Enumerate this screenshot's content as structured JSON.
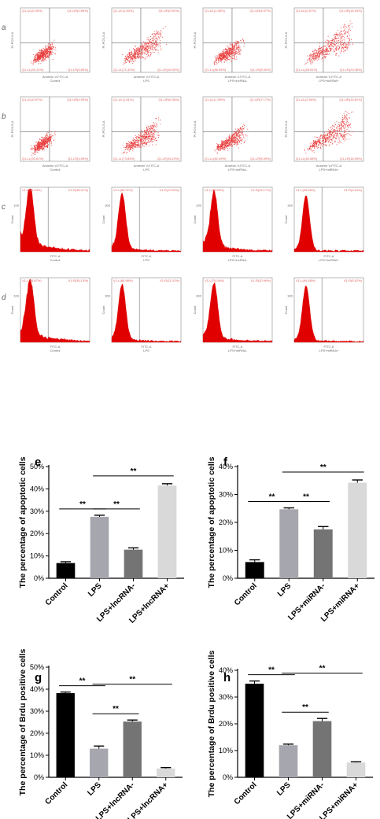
{
  "panel_letters": [
    "a",
    "b",
    "c",
    "d",
    "e",
    "f",
    "g",
    "h"
  ],
  "flow_rows": [
    {
      "letter": "a",
      "kind": "scatter",
      "xlabel": "Annexin V-FITC-A",
      "ylabel": "PI-PCS-5-A",
      "plots": [
        {
          "condition": "Control",
          "quadrants": [
            "Q1-UL(0.39%)",
            "Q1-UR(0.69%)",
            "Q1-LL(93.12%)",
            "Q1-LR(5.80%)"
          ]
        },
        {
          "condition": "LPS",
          "quadrants": [
            "Q1-UL(1.83%)",
            "Q1-UR(9.92%)",
            "Q1-LL(71.32%)",
            "Q1-LR(16.93%)"
          ]
        },
        {
          "condition": "LPS+lncRNA-",
          "quadrants": [
            "Q1-UL(1.08%)",
            "Q1-UR(4.57%)",
            "Q1-LL(86.05%)",
            "Q1-LR(8.30%)"
          ]
        },
        {
          "condition": "LPS+lncRNA+",
          "quadrants": [
            "Q1-UL(2.67%)",
            "Q1-UR(18.44%)",
            "Q1-LL(55.81%)",
            "Q1-LR(23.08%)"
          ]
        }
      ]
    },
    {
      "letter": "b",
      "kind": "scatter",
      "xlabel": "Annexin V-FITC-A",
      "ylabel": "PI-PCS-5-A",
      "plots": [
        {
          "condition": "Control",
          "quadrants": [
            "Q1-UL(0.87%)",
            "Q1-UR(0.93%)",
            "Q1-LL(93.61%)",
            "Q1-LR(4.59%)"
          ]
        },
        {
          "condition": "LPS",
          "quadrants": [
            "Q1-UL(1.61%)",
            "Q1-UR(8.36%)",
            "Q1-LL(73.84%)",
            "Q1-LR(16.19%)"
          ]
        },
        {
          "condition": "LPS+miRNA-",
          "quadrants": [
            "Q1-UL(1.95%)",
            "Q1-UR(7.17%)",
            "Q1-LL(82.49%)",
            "Q1-LR(8.39%)"
          ]
        },
        {
          "condition": "LPS+miRNA+",
          "quadrants": [
            "Q1-UL(2.56%)",
            "Q1-UR(15.81%)",
            "Q1-LL(63.58%)",
            "Q1-LR(18.05%)"
          ]
        }
      ]
    },
    {
      "letter": "c",
      "kind": "histogram",
      "xlabel": "FITC-A",
      "ylabel": "Count",
      "plots": [
        {
          "condition": "Control",
          "gates": [
            "V1-L(61.93%)",
            "V1-R(38.07%)"
          ],
          "ytick": "100"
        },
        {
          "condition": "LPS",
          "gates": [
            "V1-L(86.97%)",
            "V1-R(13.03%)"
          ],
          "ytick": "300"
        },
        {
          "condition": "LPS+lncRNA-",
          "gates": [
            "V1-L(74.83%)",
            "V1-R(25.17%)"
          ],
          "ytick": "200"
        },
        {
          "condition": "LPS+lncRNA+",
          "gates": [
            "V1-L(95.96%)",
            "V1-R(4.04%)"
          ],
          "ytick": "300"
        }
      ]
    },
    {
      "letter": "d",
      "kind": "histogram",
      "xlabel": "FITC-A",
      "ylabel": "Count",
      "plots": [
        {
          "condition": "Control",
          "gates": [
            "V1-L(64.87%)",
            "V1-R(35.13%)"
          ],
          "ytick": "100"
        },
        {
          "condition": "LPS",
          "gates": [
            "V1-L(88.98%)",
            "V1-R(11.02%)"
          ],
          "ytick": "300"
        },
        {
          "condition": "LPS+miRNA-",
          "gates": [
            "V1-L(79.04%)",
            "V1-R(20.96%)"
          ],
          "ytick": "300"
        },
        {
          "condition": "LPS+miRNA+",
          "gates": [
            "V1-L(94.48%)",
            "V1-R(5.52%)"
          ],
          "ytick": "300"
        }
      ]
    }
  ],
  "colors": {
    "dots": "#e83a3a",
    "histogram": "#e00000",
    "bar_control": "#000000",
    "bar_lps": "#a6a6ae",
    "bar_minus": "#747474",
    "bar_plus": "#d9d9d9"
  },
  "chart_data": [
    {
      "panel": "e",
      "type": "bar",
      "ylabel": "The percentage of apoptotic cells",
      "categories": [
        "Control",
        "LPS",
        "LPS+lncRNA-",
        "LPS+lncRNA+"
      ],
      "values": [
        6.8,
        27.5,
        12.8,
        41.5
      ],
      "errors": [
        0.6,
        0.7,
        0.8,
        0.8
      ],
      "ylim": [
        0,
        50
      ],
      "yticks": [
        "0%",
        "10%",
        "20%",
        "30%",
        "40%",
        "50%"
      ],
      "tick_step": 10,
      "significance": [
        {
          "from": 0,
          "to": 1,
          "label": "**"
        },
        {
          "from": 1,
          "to": 2,
          "label": "**"
        },
        {
          "from": 1,
          "to": 3,
          "label": "**"
        }
      ]
    },
    {
      "panel": "f",
      "type": "bar",
      "ylabel": "The percentage of apoptotic cells",
      "categories": [
        "Control",
        "LPS",
        "LPS+miRNA-",
        "LPS+miRNA+"
      ],
      "values": [
        5.8,
        24.7,
        17.5,
        34.2
      ],
      "errors": [
        0.8,
        0.5,
        1.0,
        1.0
      ],
      "ylim": [
        0,
        40
      ],
      "yticks": [
        "0%",
        "10%",
        "20%",
        "30%",
        "40%"
      ],
      "tick_step": 10,
      "significance": [
        {
          "from": 0,
          "to": 1,
          "label": "**"
        },
        {
          "from": 1,
          "to": 2,
          "label": "**"
        },
        {
          "from": 1,
          "to": 3,
          "label": "**"
        }
      ]
    },
    {
      "panel": "g",
      "type": "bar",
      "ylabel": "The percentage of Brdu positive cells",
      "categories": [
        "Control",
        "LPS",
        "LPS+lncRNA-",
        "LPS+lncRNA+"
      ],
      "values": [
        38.2,
        13.0,
        25.3,
        4.0
      ],
      "errors": [
        0.5,
        1.2,
        0.7,
        0.4
      ],
      "ylim": [
        0,
        50
      ],
      "yticks": [
        "0%",
        "10%",
        "20%",
        "30%",
        "40%",
        "50%"
      ],
      "tick_step": 10,
      "significance": [
        {
          "from": 0,
          "to": 1,
          "label": "**"
        },
        {
          "from": 1,
          "to": 2,
          "label": "**"
        },
        {
          "from": 1,
          "to": 3,
          "label": "**"
        }
      ]
    },
    {
      "panel": "h",
      "type": "bar",
      "ylabel": "The percentage of Brdu positive cells",
      "categories": [
        "Control",
        "LPS",
        "LPS+miRNA-",
        "LPS+miRNA+"
      ],
      "values": [
        35.0,
        12.0,
        21.0,
        5.5
      ],
      "errors": [
        1.0,
        0.4,
        1.0,
        0.3
      ],
      "ylim": [
        0,
        40
      ],
      "yticks": [
        "0%",
        "10%",
        "20%",
        "30%",
        "40%"
      ],
      "tick_step": 10,
      "significance": [
        {
          "from": 0,
          "to": 1,
          "label": "**"
        },
        {
          "from": 1,
          "to": 2,
          "label": "**"
        },
        {
          "from": 1,
          "to": 3,
          "label": "**"
        }
      ]
    }
  ]
}
